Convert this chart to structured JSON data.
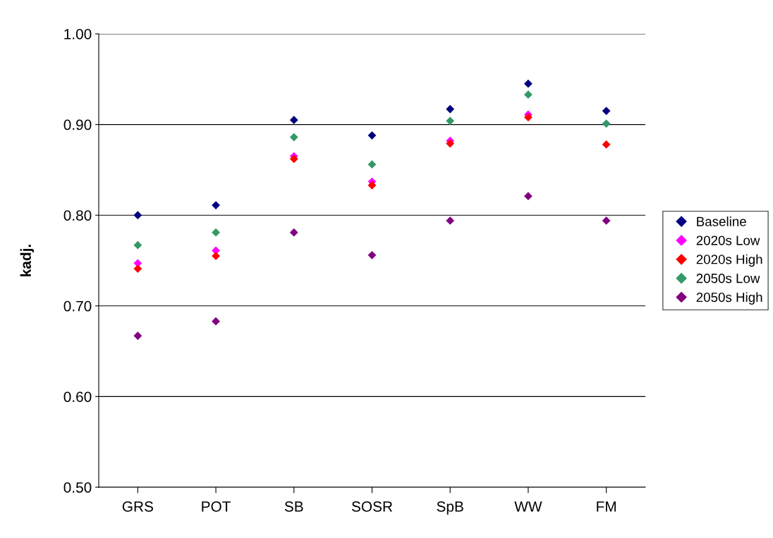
{
  "chart_data": {
    "type": "scatter",
    "ylabel": "kadj.",
    "categories": [
      "GRS",
      "POT",
      "SB",
      "SOSR",
      "SpB",
      "WW",
      "FM"
    ],
    "series": [
      {
        "name": "Baseline",
        "color": "#000080",
        "values": [
          0.8,
          0.811,
          0.905,
          0.888,
          0.917,
          0.945,
          0.915
        ]
      },
      {
        "name": "2020s Low",
        "color": "#ff00ff",
        "values": [
          0.747,
          0.761,
          0.865,
          0.837,
          0.882,
          0.911,
          null
        ]
      },
      {
        "name": "2020s High",
        "color": "#ff0000",
        "values": [
          0.741,
          0.755,
          0.862,
          0.833,
          0.879,
          0.908,
          0.878
        ]
      },
      {
        "name": "2050s Low",
        "color": "#339966",
        "values": [
          0.767,
          0.781,
          0.886,
          0.856,
          0.904,
          0.933,
          0.901
        ]
      },
      {
        "name": "2050s High",
        "color": "#800080",
        "values": [
          0.667,
          0.683,
          0.781,
          0.756,
          0.794,
          0.821,
          0.794
        ]
      }
    ],
    "ylim": [
      0.5,
      1.0
    ],
    "yticks": [
      {
        "value": 0.5,
        "label": "0.50"
      },
      {
        "value": 0.6,
        "label": "0.60"
      },
      {
        "value": 0.7,
        "label": "0.70"
      },
      {
        "value": 0.8,
        "label": "0.80"
      },
      {
        "value": 0.9,
        "label": "0.90"
      },
      {
        "value": 1.0,
        "label": "1.00"
      }
    ],
    "grid": "y",
    "legend": "right",
    "marker": "diamond"
  }
}
